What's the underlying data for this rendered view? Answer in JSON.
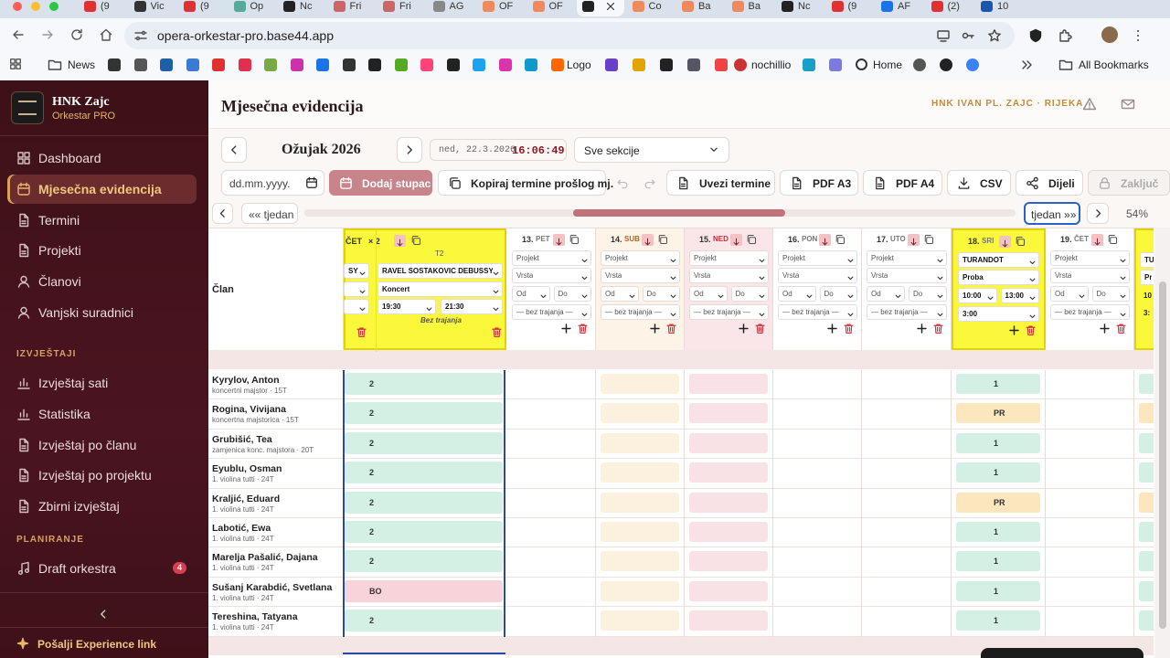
{
  "browser": {
    "tabs": [
      "(9",
      "Vic",
      "(9",
      "Op",
      "Nc",
      "Fri",
      "Fri",
      "AG",
      "OF",
      "OF",
      "",
      "Co",
      "Ba",
      "Ba",
      "Nc",
      "(9",
      "AF",
      "(2)",
      "10"
    ],
    "url": "opera-orkestar-pro.base44.app",
    "bookmarks": [
      "News",
      "Logo",
      "nochillio",
      "Home"
    ],
    "all_bookmarks": "All Bookmarks"
  },
  "sidebar": {
    "brand": "HNK Zajc",
    "subtitle": "Orkestar PRO",
    "nav": [
      "Dashboard",
      "Mjesečna evidencija",
      "Termini",
      "Projekti",
      "Članovi",
      "Vanjski suradnici"
    ],
    "active": 1,
    "sections": [
      {
        "title": "IZVJEŠTAJI",
        "items": [
          {
            "label": "Izvještaj sati"
          },
          {
            "label": "Statistika"
          },
          {
            "label": "Izvještaj po članu"
          },
          {
            "label": "Izvještaj po projektu"
          },
          {
            "label": "Zbirni izvještaj"
          }
        ]
      },
      {
        "title": "PLANIRANJE",
        "items": [
          {
            "label": "Draft orkestra",
            "badge": 4
          }
        ]
      }
    ],
    "footer": "Pošalji Experience link"
  },
  "header": {
    "title": "Mjesečna evidencija",
    "theatre": "HNK IVAN PL. ZAJC · RIJEKA"
  },
  "toolbar": {
    "month": "Ožujak 2026",
    "date": "ned, 22.3.2026",
    "time": "16:06:49",
    "section_select": "Sve sekcije",
    "date_input": "dd.mm.yyyy.",
    "add_column": "Dodaj stupac",
    "buttons": [
      "Kopiraj termine prošlog mj.",
      "Uvezi termine",
      "PDF A3",
      "PDF A4",
      "CSV",
      "Dijeli",
      "Zaključ"
    ],
    "prev_week": "«« tjedan",
    "next_week": "tjedan »»",
    "zoom": "54%"
  },
  "grid": {
    "member_header": "Član",
    "defaults": {
      "project": "Projekt",
      "kind": "Vrsta",
      "from": "Od",
      "to": "Do",
      "duration": "— bez trajanja —"
    },
    "first_day": {
      "day": "ČET",
      "count": "× 2",
      "tag": "T2",
      "left_project": "SY",
      "project": "RAVEL ŠOSTAKOVIĆ DEBUSSY",
      "kind": "Koncert",
      "from": "19:30",
      "to": "21:30",
      "duration": "Bez trajanja"
    },
    "days": [
      {
        "num": "13.",
        "day": "PET",
        "tone": "normal"
      },
      {
        "num": "14.",
        "day": "SUB",
        "tone": "saturday"
      },
      {
        "num": "15.",
        "day": "NED",
        "tone": "sunday"
      },
      {
        "num": "16.",
        "day": "PON",
        "tone": "normal"
      },
      {
        "num": "17.",
        "day": "UTO",
        "tone": "normal"
      },
      {
        "num": "18.",
        "day": "SRI",
        "tone": "highlight",
        "project": "TURANDOT",
        "kind": "Proba",
        "from": "10:00",
        "to": "13:00",
        "duration": "3:00"
      },
      {
        "num": "19.",
        "day": "ČET",
        "tone": "normal"
      }
    ],
    "partial_day": {
      "project": "TU",
      "kind": "Pr",
      "from": "10",
      "duration": "3:"
    },
    "members": [
      {
        "name": "Kyrylov, Anton",
        "role": "koncertni majstor · 15T",
        "values": [
          2,
          1
        ]
      },
      {
        "name": "Rogina, Vivijana",
        "role": "koncertna majstorica · 15T",
        "values": [
          2,
          "PR"
        ]
      },
      {
        "name": "Grubišić, Tea",
        "role": "zamjenica konc. majstora · 20T",
        "values": [
          2,
          1
        ]
      },
      {
        "name": "Eyublu, Osman",
        "role": "1. violina tutti · 24T",
        "values": [
          2,
          1
        ]
      },
      {
        "name": "Kraljić, Eduard",
        "role": "1. violina tutti · 24T",
        "values": [
          2,
          "PR"
        ]
      },
      {
        "name": "Labotić, Ewa",
        "role": "1. violina tutti · 24T",
        "values": [
          2,
          1
        ]
      },
      {
        "name": "Marelja Pašalić, Dajana",
        "role": "1. violina tutti · 24T",
        "values": [
          2,
          1
        ]
      },
      {
        "name": "Sušanj Karabdić, Svetlana",
        "role": "1. violina tutti · 24T",
        "values": [
          "BO",
          1
        ]
      },
      {
        "name": "Tereshina, Tatyana",
        "role": "1. violina tutti · 24T",
        "values": [
          2,
          1
        ]
      }
    ]
  }
}
